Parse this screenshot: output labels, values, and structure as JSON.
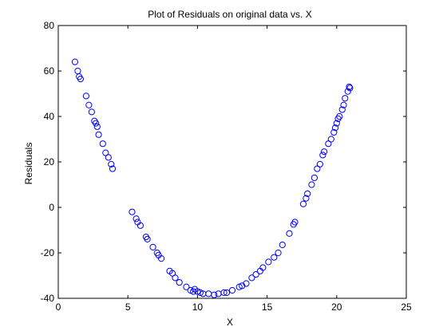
{
  "chart_data": {
    "type": "scatter",
    "title": "Plot of Residuals on original data vs. X",
    "xlabel": "X",
    "ylabel": "Residuals",
    "xlim": [
      0,
      25
    ],
    "ylim": [
      -40,
      80
    ],
    "xticks": [
      0,
      5,
      10,
      15,
      20,
      25
    ],
    "yticks": [
      -40,
      -20,
      0,
      20,
      40,
      60,
      80
    ],
    "xtick_labels": [
      "0",
      "5",
      "10",
      "15",
      "20",
      "25"
    ],
    "ytick_labels": [
      "-40",
      "-20",
      "0",
      "20",
      "40",
      "60",
      "80"
    ],
    "grid": false,
    "legend": "none",
    "marker": "circle-open",
    "marker_color": "#0000ff",
    "series": [
      {
        "points": [
          [
            1.2,
            64
          ],
          [
            1.4,
            60
          ],
          [
            1.5,
            57.5
          ],
          [
            1.6,
            56.5
          ],
          [
            2.0,
            49
          ],
          [
            2.2,
            45
          ],
          [
            2.4,
            42
          ],
          [
            2.6,
            38
          ],
          [
            2.7,
            37
          ],
          [
            2.8,
            35.5
          ],
          [
            2.9,
            32
          ],
          [
            3.2,
            28
          ],
          [
            3.4,
            24
          ],
          [
            3.6,
            22
          ],
          [
            3.8,
            19
          ],
          [
            3.9,
            17
          ],
          [
            5.3,
            -2
          ],
          [
            5.6,
            -5
          ],
          [
            5.7,
            -6.5
          ],
          [
            5.9,
            -8
          ],
          [
            6.3,
            -13
          ],
          [
            6.4,
            -14
          ],
          [
            6.8,
            -17.5
          ],
          [
            7.1,
            -20
          ],
          [
            7.2,
            -21
          ],
          [
            7.4,
            -22.5
          ],
          [
            8.0,
            -28
          ],
          [
            8.2,
            -29
          ],
          [
            8.4,
            -31
          ],
          [
            8.7,
            -33
          ],
          [
            9.2,
            -35
          ],
          [
            9.5,
            -36.5
          ],
          [
            9.7,
            -37
          ],
          [
            9.8,
            -36
          ],
          [
            10.0,
            -37
          ],
          [
            10.2,
            -37.5
          ],
          [
            10.4,
            -38
          ],
          [
            10.8,
            -38
          ],
          [
            11.2,
            -38.5
          ],
          [
            11.5,
            -38
          ],
          [
            11.9,
            -37.5
          ],
          [
            12.1,
            -37.5
          ],
          [
            12.5,
            -36.5
          ],
          [
            13.0,
            -35
          ],
          [
            13.2,
            -34.5
          ],
          [
            13.5,
            -33.5
          ],
          [
            13.9,
            -31
          ],
          [
            14.2,
            -29.5
          ],
          [
            14.5,
            -28
          ],
          [
            14.7,
            -26.5
          ],
          [
            15.1,
            -24
          ],
          [
            15.5,
            -22
          ],
          [
            15.8,
            -20
          ],
          [
            16.1,
            -16.5
          ],
          [
            16.6,
            -11.5
          ],
          [
            16.9,
            -7.5
          ],
          [
            17.0,
            -6.5
          ],
          [
            17.6,
            1.5
          ],
          [
            17.8,
            4
          ],
          [
            17.9,
            6
          ],
          [
            18.2,
            10
          ],
          [
            18.4,
            13
          ],
          [
            18.6,
            17
          ],
          [
            18.8,
            19
          ],
          [
            19.0,
            23
          ],
          [
            19.1,
            24.5
          ],
          [
            19.4,
            28
          ],
          [
            19.6,
            30
          ],
          [
            19.8,
            33
          ],
          [
            19.9,
            35
          ],
          [
            20.0,
            37
          ],
          [
            20.1,
            39
          ],
          [
            20.2,
            40
          ],
          [
            20.4,
            43
          ],
          [
            20.5,
            45
          ],
          [
            20.6,
            48
          ],
          [
            20.8,
            51
          ],
          [
            20.9,
            53
          ],
          [
            20.95,
            52.5
          ]
        ]
      }
    ]
  }
}
